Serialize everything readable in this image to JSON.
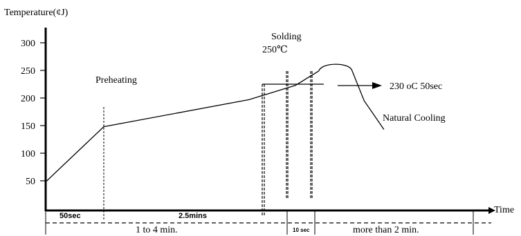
{
  "chart_data": {
    "type": "line",
    "ylabel": "Temperature(¢J)",
    "xlabel": "Time",
    "ylim": [
      30,
      330
    ],
    "yticks": [
      300,
      250,
      200,
      150,
      100,
      50
    ],
    "grid": false,
    "series": [
      {
        "x": [
          0,
          1.0,
          3.5,
          4.3,
          4.7,
          4.93,
          5.27,
          5.48,
          5.82
        ],
        "y": [
          48,
          148,
          197,
          223,
          249,
          260,
          250,
          195,
          143
        ]
      }
    ],
    "annotations": {
      "preheating": "Preheating",
      "solding": "Solding",
      "peak": "250℃",
      "hold": "230 oC 50sec",
      "cooling": "Natural Cooling"
    },
    "phases": {
      "first_50sec": "50sec",
      "preheat_duration": "2.5mins",
      "total_preheat": "1 to 4 min.",
      "peak_window": "10 sec",
      "cooling_duration": "more than 2 min."
    }
  },
  "colors": {
    "line": "#000000",
    "background": "#ffffff"
  }
}
